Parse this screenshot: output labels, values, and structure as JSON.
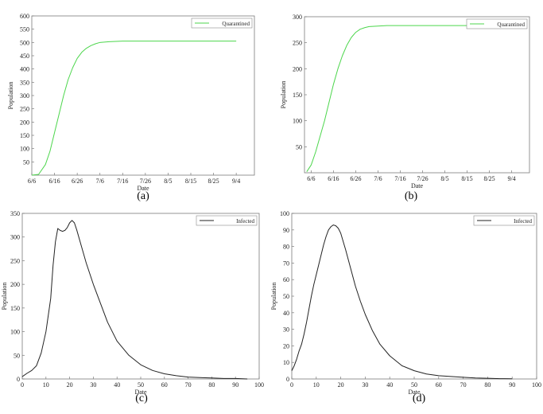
{
  "chart_data": [
    {
      "panel": "a",
      "caption": "(a)",
      "type": "line",
      "xlabel": "Date",
      "ylabel": "Population",
      "xticks": [
        "6/6",
        "6/16",
        "6/26",
        "7/6",
        "7/16",
        "7/26",
        "8/5",
        "8/15",
        "8/25",
        "9/4"
      ],
      "yticks": [
        "50",
        "100",
        "150",
        "200",
        "250",
        "300",
        "350",
        "400",
        "450",
        "500",
        "550",
        "600"
      ],
      "xlim": [
        "6/6",
        "9/12"
      ],
      "ylim": [
        0,
        600
      ],
      "legend_position": "top-right",
      "grid": false,
      "series": [
        {
          "name": "Quarantined",
          "color": "#4cd64c",
          "x": [
            "6/6",
            "6/9",
            "6/12",
            "6/14",
            "6/16",
            "6/18",
            "6/20",
            "6/22",
            "6/24",
            "6/26",
            "6/28",
            "6/30",
            "7/2",
            "7/4",
            "7/6",
            "7/10",
            "7/16",
            "7/26",
            "8/5",
            "8/15",
            "8/25",
            "9/4"
          ],
          "y": [
            0,
            3,
            40,
            90,
            160,
            230,
            300,
            360,
            405,
            440,
            463,
            478,
            488,
            495,
            500,
            503,
            505,
            505,
            505,
            505,
            505,
            505
          ]
        }
      ]
    },
    {
      "panel": "b",
      "caption": "(b)",
      "type": "line",
      "xlabel": "Date",
      "ylabel": "Population",
      "xticks": [
        "6/6",
        "6/16",
        "6/26",
        "7/6",
        "7/16",
        "7/26",
        "8/5",
        "8/15",
        "8/25",
        "9/4"
      ],
      "yticks": [
        "50",
        "100",
        "150",
        "200",
        "250",
        "300"
      ],
      "xlim": [
        "6/3",
        "9/12"
      ],
      "ylim": [
        0,
        300
      ],
      "legend_position": "top-right",
      "grid": false,
      "series": [
        {
          "name": "Quarantined",
          "color": "#4cd64c",
          "x": [
            "6/4",
            "6/6",
            "6/8",
            "6/10",
            "6/12",
            "6/14",
            "6/16",
            "6/18",
            "6/20",
            "6/22",
            "6/24",
            "6/26",
            "6/28",
            "6/30",
            "7/2",
            "7/6",
            "7/10",
            "7/16",
            "7/26",
            "8/5",
            "8/15",
            "8/25",
            "9/6"
          ],
          "y": [
            2,
            15,
            40,
            70,
            100,
            135,
            170,
            200,
            225,
            245,
            260,
            270,
            276,
            279,
            281,
            282,
            283,
            283,
            283,
            283,
            283,
            283,
            283
          ]
        }
      ]
    },
    {
      "panel": "c",
      "caption": "(c)",
      "type": "line",
      "xlabel": "Date",
      "ylabel": "Population",
      "xticks": [
        "0",
        "10",
        "20",
        "30",
        "40",
        "50",
        "60",
        "70",
        "80",
        "90",
        "100"
      ],
      "yticks": [
        "0",
        "50",
        "100",
        "150",
        "200",
        "250",
        "300",
        "350"
      ],
      "xlim": [
        0,
        100
      ],
      "ylim": [
        0,
        350
      ],
      "legend_position": "top-right",
      "grid": false,
      "series": [
        {
          "name": "Infected",
          "color": "#222222",
          "x": [
            0,
            2,
            4,
            6,
            8,
            10,
            12,
            13,
            14,
            15,
            16,
            17,
            18,
            19,
            20,
            21,
            22,
            23,
            25,
            27,
            30,
            33,
            36,
            40,
            45,
            50,
            55,
            60,
            65,
            70,
            75,
            80,
            85,
            90,
            95
          ],
          "y": [
            5,
            12,
            18,
            28,
            55,
            100,
            170,
            240,
            290,
            318,
            314,
            312,
            314,
            320,
            330,
            335,
            330,
            315,
            280,
            245,
            200,
            160,
            120,
            80,
            50,
            30,
            18,
            11,
            7,
            4,
            3,
            2,
            1,
            1,
            0
          ]
        }
      ]
    },
    {
      "panel": "d",
      "caption": "(d)",
      "type": "line",
      "xlabel": "Date",
      "ylabel": "Population",
      "xticks": [
        "0",
        "10",
        "20",
        "30",
        "40",
        "50",
        "60",
        "70",
        "80",
        "90",
        "100"
      ],
      "yticks": [
        "0",
        "10",
        "20",
        "30",
        "40",
        "50",
        "60",
        "70",
        "80",
        "90",
        "100"
      ],
      "xlim": [
        0,
        100
      ],
      "ylim": [
        0,
        100
      ],
      "legend_position": "top-right",
      "grid": false,
      "series": [
        {
          "name": "Infected",
          "color": "#222222",
          "x": [
            0,
            1,
            2,
            3,
            4,
            5,
            6,
            7,
            8,
            9,
            10,
            11,
            12,
            13,
            14,
            15,
            16,
            17,
            18,
            19,
            20,
            21,
            22,
            24,
            26,
            28,
            30,
            33,
            36,
            40,
            45,
            50,
            55,
            60,
            65,
            70,
            75,
            80,
            85,
            90
          ],
          "y": [
            5,
            8,
            12,
            17,
            21,
            27,
            34,
            42,
            50,
            57,
            63,
            69,
            75,
            81,
            86,
            90,
            92,
            93,
            92.5,
            91,
            88,
            83,
            78,
            67,
            56,
            47,
            39,
            29,
            21,
            14,
            8,
            5,
            3,
            2,
            1.5,
            1,
            0.6,
            0.4,
            0.2,
            0.1
          ]
        }
      ]
    }
  ]
}
